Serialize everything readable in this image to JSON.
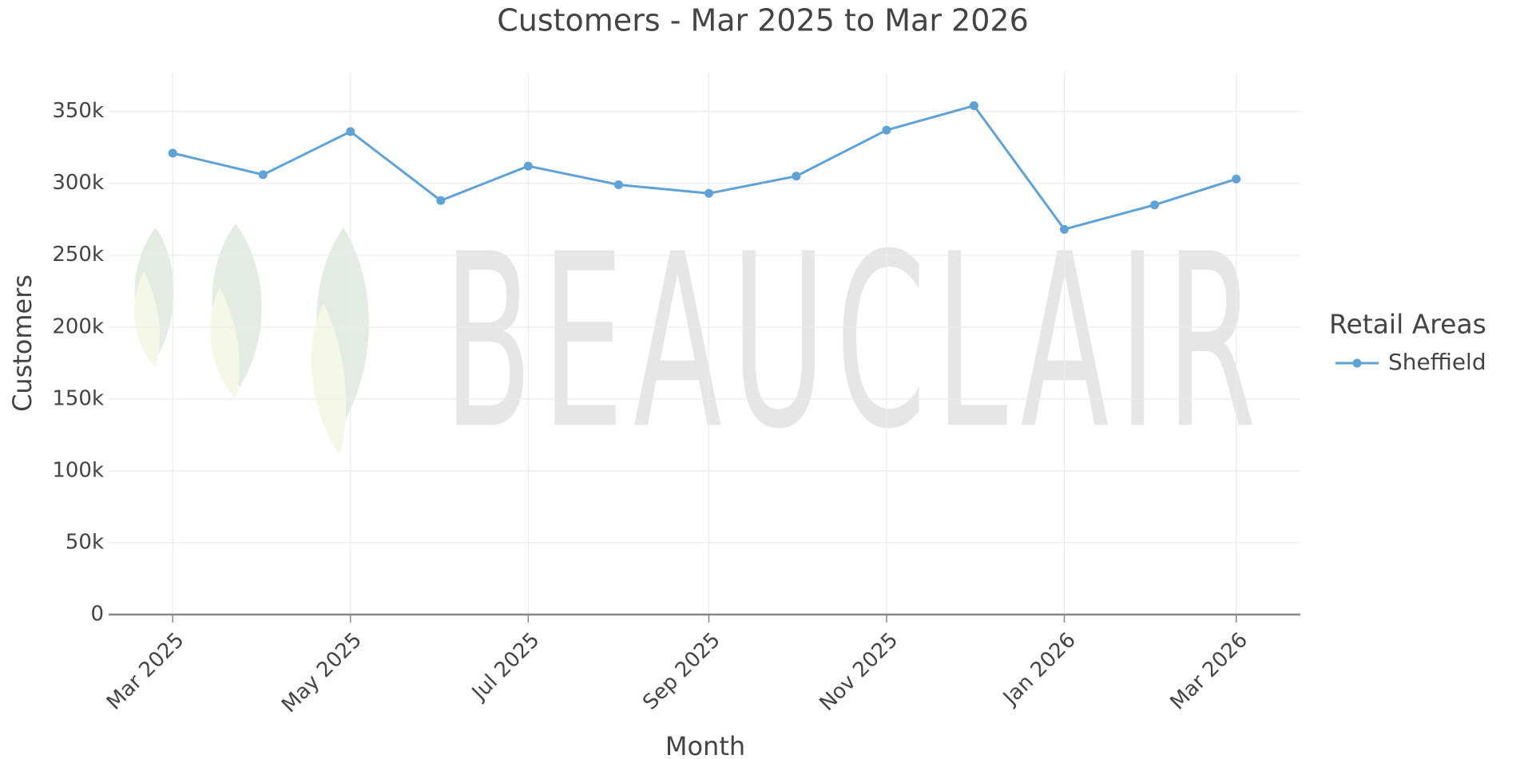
{
  "chart_data": {
    "type": "line",
    "title": "Customers - Mar 2025 to Mar 2026",
    "x_label": "Month",
    "y_label": "Customers",
    "legend_title": "Retail Areas",
    "legend_position": "right",
    "watermark": "BEAUCLAIR",
    "x": [
      "2025-03",
      "2025-04",
      "2025-05",
      "2025-06",
      "2025-07",
      "2025-08",
      "2025-09",
      "2025-10",
      "2025-11",
      "2025-12",
      "2026-01",
      "2026-02",
      "2026-03"
    ],
    "series": [
      {
        "name": "Sheffield",
        "color": "#5fa2d8",
        "values": [
          321000,
          306000,
          336000,
          288000,
          312000,
          299000,
          293000,
          305000,
          337000,
          354000,
          268000,
          285000,
          303000
        ]
      }
    ],
    "xlim": [
      "2025-02-07",
      "2026-03-23"
    ],
    "xticks": [
      {
        "value": "2025-03",
        "label": "Mar 2025"
      },
      {
        "value": "2025-05",
        "label": "May 2025"
      },
      {
        "value": "2025-07",
        "label": "Jul 2025"
      },
      {
        "value": "2025-09",
        "label": "Sep 2025"
      },
      {
        "value": "2025-11",
        "label": "Nov 2025"
      },
      {
        "value": "2026-01",
        "label": "Jan 2026"
      },
      {
        "value": "2026-03",
        "label": "Mar 2026"
      }
    ],
    "ylim": [
      0,
      377000
    ],
    "yticks": [
      0,
      {
        "value": 50000,
        "label": "50k"
      },
      {
        "value": 100000,
        "label": "100k"
      },
      {
        "value": 150000,
        "label": "150k"
      },
      {
        "value": 200000,
        "label": "200k"
      },
      {
        "value": 250000,
        "label": "250k"
      },
      {
        "value": 300000,
        "label": "300k"
      },
      {
        "value": 350000,
        "label": "350k"
      }
    ],
    "grid": true
  }
}
